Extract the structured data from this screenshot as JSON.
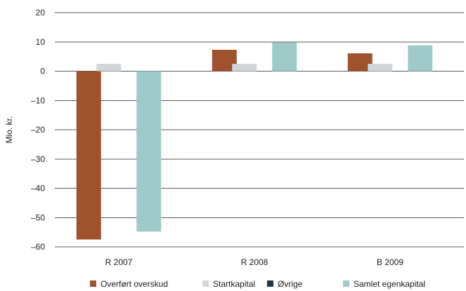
{
  "chart_data": {
    "type": "bar",
    "title": "",
    "xlabel": "",
    "ylabel": "Mio. kr.",
    "ylim": [
      -60,
      20
    ],
    "yticks": [
      20,
      10,
      0,
      -10,
      -20,
      -30,
      -40,
      -50,
      -60
    ],
    "ytick_labels": [
      "20",
      "10",
      "0",
      "–10",
      "–20",
      "–30",
      "–40",
      "–50",
      "–60"
    ],
    "grid": true,
    "legend_position": "bottom",
    "categories": [
      "R 2007",
      "R 2008",
      "B 2009"
    ],
    "series": [
      {
        "name": "Overført overskud",
        "color": "#a0512d",
        "values": [
          -57.5,
          7.3,
          6.1
        ]
      },
      {
        "name": "Startkapital",
        "color": "#d3d6d9",
        "values": [
          2.5,
          2.5,
          2.5
        ]
      },
      {
        "name": "Øvrige",
        "color": "#233640",
        "values": [
          0,
          0,
          0
        ]
      },
      {
        "name": "Samlet egenkapital",
        "color": "#9ecbca",
        "values": [
          -54.8,
          9.8,
          8.8
        ]
      }
    ]
  }
}
